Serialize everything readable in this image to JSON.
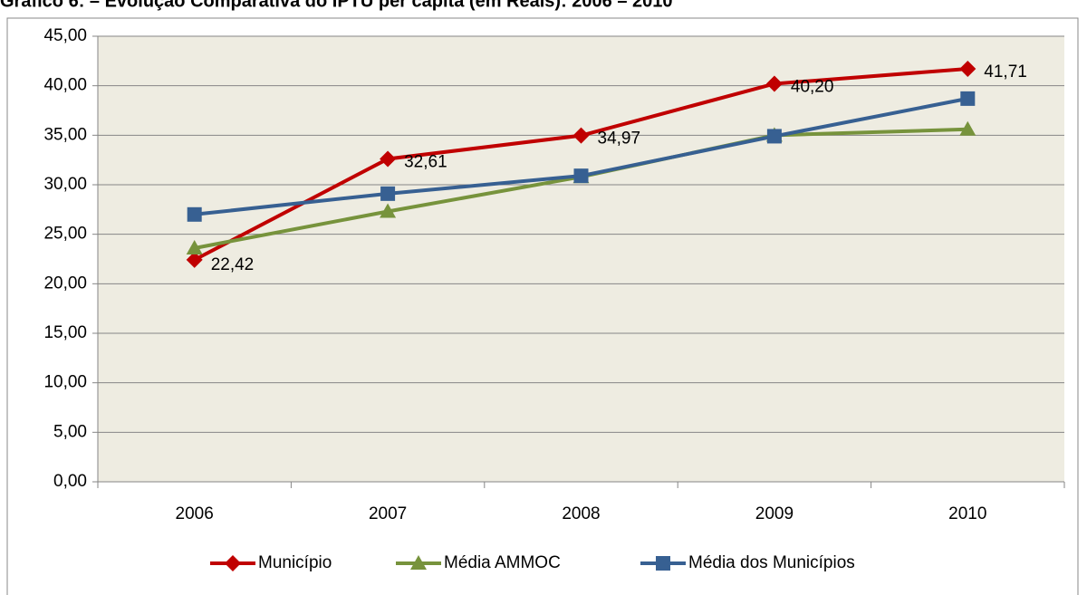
{
  "chart_data": {
    "type": "line",
    "title": "Gráfico 6: – Evolução Comparativa do IPTU per capita (em Reais): 2006 – 2010",
    "categories": [
      "2006",
      "2007",
      "2008",
      "2009",
      "2010"
    ],
    "series": [
      {
        "name": "Município",
        "color": "#c00000",
        "marker": "diamond",
        "values": [
          22.42,
          32.61,
          34.97,
          40.2,
          41.71
        ],
        "value_labels": [
          "22,42",
          "32,61",
          "34,97",
          "40,20",
          "41,71"
        ]
      },
      {
        "name": "Média AMMOC",
        "color": "#77933c",
        "marker": "triangle",
        "values": [
          23.6,
          27.3,
          30.8,
          35.0,
          35.6
        ]
      },
      {
        "name": "Média dos Municípios",
        "color": "#376092",
        "marker": "square",
        "values": [
          27.0,
          29.1,
          30.9,
          34.9,
          38.7
        ]
      }
    ],
    "ylim": [
      0,
      45
    ],
    "yticks": [
      {
        "value": 0,
        "label": "0,00"
      },
      {
        "value": 5,
        "label": "5,00"
      },
      {
        "value": 10,
        "label": "10,00"
      },
      {
        "value": 15,
        "label": "15,00"
      },
      {
        "value": 20,
        "label": "20,00"
      },
      {
        "value": 25,
        "label": "25,00"
      },
      {
        "value": 30,
        "label": "30,00"
      },
      {
        "value": 35,
        "label": "35,00"
      },
      {
        "value": 40,
        "label": "40,00"
      },
      {
        "value": 45,
        "label": "45,00"
      }
    ],
    "grid": true,
    "legend": "bottom"
  }
}
